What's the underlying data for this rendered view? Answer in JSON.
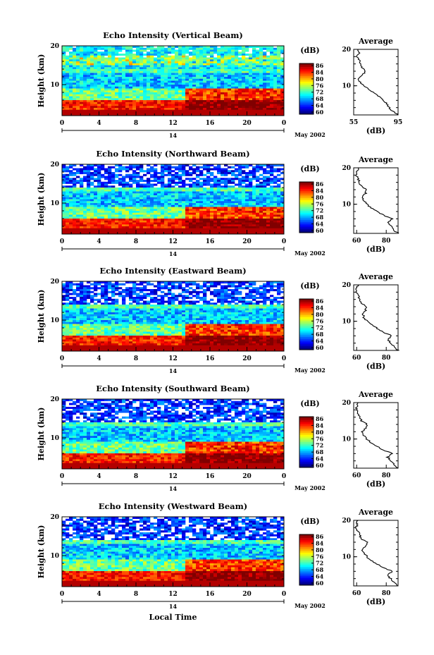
{
  "chart_data": [
    {
      "type": "heatmap",
      "title": "Echo Intensity (Vertical Beam)",
      "ylabel": "Height (km)",
      "yticks": [
        "20",
        "10"
      ],
      "xticks": [
        "0",
        "4",
        "8",
        "12",
        "16",
        "20",
        "0"
      ],
      "date_day": "14",
      "date_label": "May 2002",
      "colorbar": {
        "label": "(dB)",
        "ticks": [
          "86",
          "84",
          "80",
          "76",
          "72",
          "68",
          "64",
          "60"
        ]
      },
      "profile": {
        "title": "Average",
        "yticks": [
          "20",
          "10"
        ],
        "xticks": [
          "55",
          "95"
        ],
        "xlabel": "(dB)",
        "xlim": [
          55,
          95
        ],
        "heights": [
          2,
          3,
          4,
          5,
          6,
          7,
          8,
          9,
          10,
          11,
          12,
          13,
          14,
          15,
          16,
          17,
          18,
          19,
          20
        ],
        "values": [
          95,
          90,
          87,
          85,
          82,
          78,
          73,
          69,
          64,
          61,
          59,
          63,
          66,
          62,
          61,
          60,
          58,
          60,
          59
        ]
      }
    },
    {
      "type": "heatmap",
      "title": "Echo Intensity (Northward Beam)",
      "ylabel": "Height (km)",
      "yticks": [
        "20",
        "10"
      ],
      "xticks": [
        "0",
        "4",
        "8",
        "12",
        "16",
        "20",
        "0"
      ],
      "date_day": "14",
      "date_label": "May 2002",
      "colorbar": {
        "label": "(dB)",
        "ticks": [
          "86",
          "84",
          "80",
          "76",
          "72",
          "68",
          "64",
          "60"
        ]
      },
      "profile": {
        "title": "Average",
        "yticks": [
          "20",
          "10"
        ],
        "xticks": [
          "60",
          "80"
        ],
        "xlabel": "(dB)",
        "xlim": [
          58,
          88
        ],
        "heights": [
          2,
          3,
          4,
          5,
          6,
          7,
          8,
          9,
          10,
          11,
          12,
          13,
          14,
          15,
          16,
          17,
          18,
          19,
          20
        ],
        "values": [
          88,
          85,
          83,
          81,
          84,
          78,
          74,
          70,
          67,
          65,
          64,
          66,
          67,
          63,
          62,
          61,
          60,
          60,
          61
        ]
      }
    },
    {
      "type": "heatmap",
      "title": "Echo Intensity (Eastward Beam)",
      "ylabel": "Height (km)",
      "yticks": [
        "20",
        "10"
      ],
      "xticks": [
        "0",
        "4",
        "8",
        "12",
        "16",
        "20",
        "0"
      ],
      "date_day": "14",
      "date_label": "May 2002",
      "colorbar": {
        "label": "(dB)",
        "ticks": [
          "86",
          "84",
          "80",
          "76",
          "72",
          "68",
          "64",
          "60"
        ]
      },
      "profile": {
        "title": "Average",
        "yticks": [
          "20",
          "10"
        ],
        "xticks": [
          "60",
          "80"
        ],
        "xlabel": "(dB)",
        "xlim": [
          58,
          88
        ],
        "heights": [
          2,
          3,
          4,
          5,
          6,
          7,
          8,
          9,
          10,
          11,
          12,
          13,
          14,
          15,
          16,
          17,
          18,
          19,
          20
        ],
        "values": [
          88,
          85,
          83,
          81,
          84,
          78,
          74,
          70,
          67,
          65,
          64,
          66,
          67,
          63,
          62,
          61,
          60,
          60,
          61
        ]
      }
    },
    {
      "type": "heatmap",
      "title": "Echo Intensity (Southward Beam)",
      "ylabel": "Height (km)",
      "yticks": [
        "20",
        "10"
      ],
      "xticks": [
        "0",
        "4",
        "8",
        "12",
        "16",
        "20",
        "0"
      ],
      "date_day": "14",
      "date_label": "May 2002",
      "colorbar": {
        "label": "(dB)",
        "ticks": [
          "86",
          "84",
          "80",
          "76",
          "72",
          "68",
          "64",
          "60"
        ]
      },
      "profile": {
        "title": "Average",
        "yticks": [
          "20",
          "10"
        ],
        "xticks": [
          "60",
          "80"
        ],
        "xlabel": "(dB)",
        "xlim": [
          58,
          88
        ],
        "heights": [
          2,
          3,
          4,
          5,
          6,
          7,
          8,
          9,
          10,
          11,
          12,
          13,
          14,
          15,
          16,
          17,
          18,
          19,
          20
        ],
        "values": [
          88,
          85,
          83,
          81,
          84,
          78,
          74,
          70,
          67,
          65,
          64,
          66,
          67,
          63,
          62,
          61,
          60,
          60,
          61
        ]
      }
    },
    {
      "type": "heatmap",
      "title": "Echo Intensity (Westward Beam)",
      "ylabel": "Height (km)",
      "yticks": [
        "20",
        "10"
      ],
      "xticks": [
        "0",
        "4",
        "8",
        "12",
        "16",
        "20",
        "0"
      ],
      "date_day": "14",
      "date_label": "May 2002",
      "xlabel": "Local Time",
      "colorbar": {
        "label": "(dB)",
        "ticks": [
          "86",
          "84",
          "80",
          "76",
          "72",
          "68",
          "64",
          "60"
        ]
      },
      "profile": {
        "title": "Average",
        "yticks": [
          "20",
          "10"
        ],
        "xticks": [
          "60",
          "80"
        ],
        "xlabel": "(dB)",
        "xlim": [
          58,
          88
        ],
        "heights": [
          2,
          3,
          4,
          5,
          6,
          7,
          8,
          9,
          10,
          11,
          12,
          13,
          14,
          15,
          16,
          17,
          18,
          19,
          20
        ],
        "values": [
          88,
          85,
          83,
          81,
          84,
          78,
          74,
          70,
          67,
          65,
          64,
          66,
          67,
          63,
          62,
          61,
          60,
          60,
          61
        ]
      }
    }
  ]
}
